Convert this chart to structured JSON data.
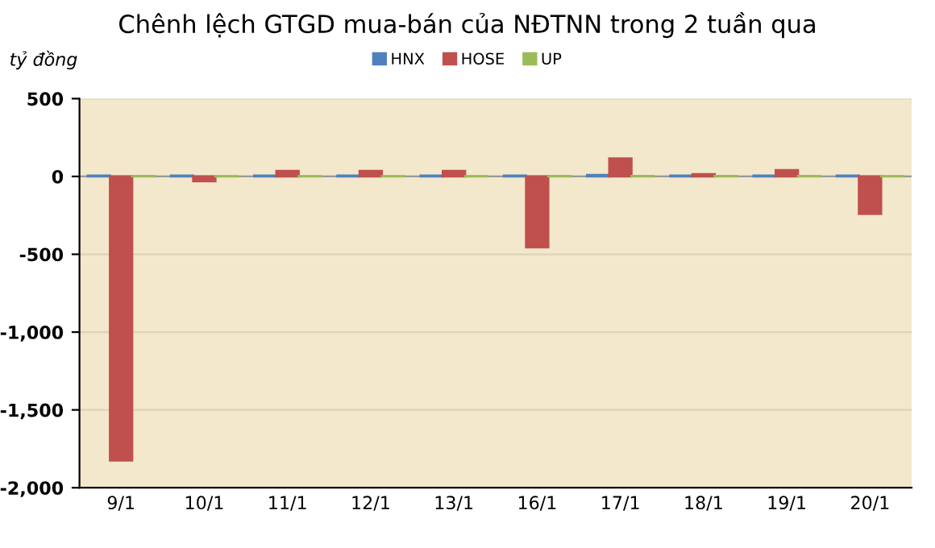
{
  "chart_data": {
    "type": "bar",
    "title": "Chênh lệch GTGD mua-bán của NĐTNN trong 2 tuần qua",
    "ylabel": "tỷ đồng",
    "categories": [
      "9/1",
      "10/1",
      "11/1",
      "12/1",
      "13/1",
      "16/1",
      "17/1",
      "18/1",
      "19/1",
      "20/1"
    ],
    "series": [
      {
        "name": "HNX",
        "color": "#4f81bd",
        "values": [
          5,
          5,
          5,
          5,
          5,
          5,
          10,
          5,
          5,
          5
        ]
      },
      {
        "name": "HOSE",
        "color": "#c0504d",
        "values": [
          -1825,
          -30,
          35,
          35,
          35,
          -455,
          115,
          15,
          40,
          -240
        ]
      },
      {
        "name": "UP",
        "color": "#9bbb59",
        "values": [
          3,
          2,
          2,
          2,
          2,
          3,
          3,
          3,
          3,
          2
        ]
      }
    ],
    "ylim": [
      -2000,
      500
    ],
    "yticks": [
      {
        "value": -2000,
        "label": "-2,000"
      },
      {
        "value": -1500,
        "label": "-1,500"
      },
      {
        "value": -1000,
        "label": "-1,000"
      },
      -500,
      0,
      500
    ],
    "grid": "y",
    "legend": "top"
  }
}
